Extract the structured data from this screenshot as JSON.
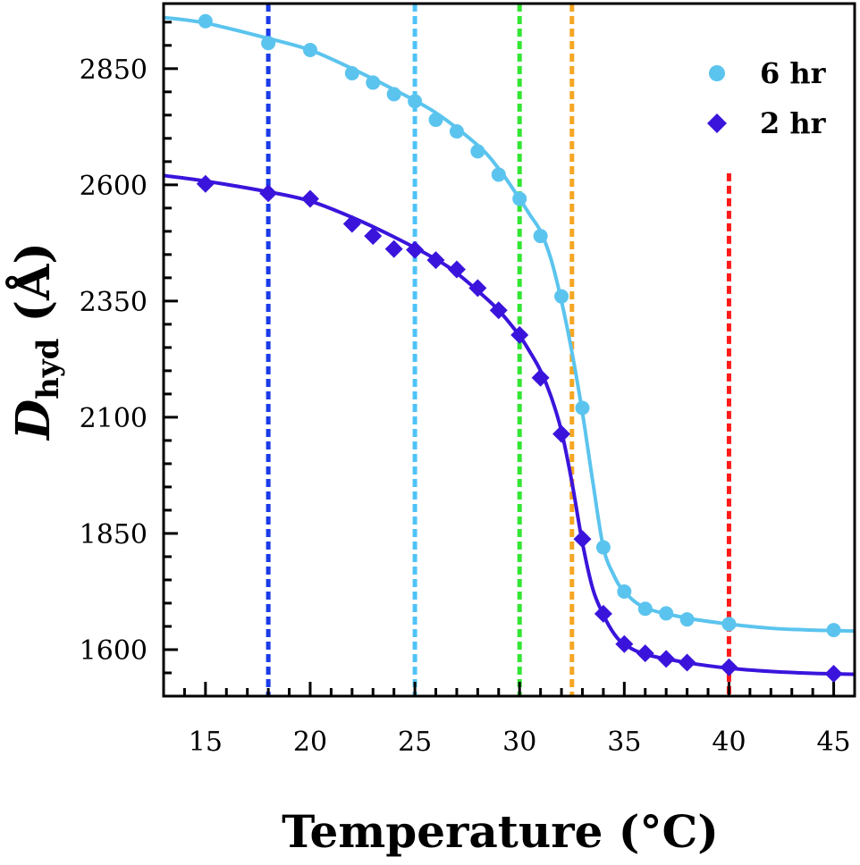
{
  "chart_data": {
    "type": "scatter",
    "xlabel": "Temperature (°C)",
    "ylabel": "D",
    "ylabel_sub": "hyd",
    "ylabel_unit": " (Å)",
    "xlim": [
      13,
      46
    ],
    "ylim": [
      1500,
      2990
    ],
    "xticks": [
      15,
      20,
      25,
      30,
      35,
      40,
      45
    ],
    "yticks": [
      1600,
      1850,
      2100,
      2350,
      2600,
      2850
    ],
    "grid": false,
    "legend_position": "top-right",
    "vlines": [
      {
        "x": 18,
        "color": "#1a3be8"
      },
      {
        "x": 25,
        "color": "#4fc3f7"
      },
      {
        "x": 30,
        "color": "#33e633"
      },
      {
        "x": 32.5,
        "color": "#f5a623"
      },
      {
        "x": 40,
        "color": "#ff1a1a"
      }
    ],
    "series": [
      {
        "name": "6 hr",
        "color": "#5bc4ee",
        "marker": "circle",
        "x": [
          15,
          18,
          20,
          22,
          23,
          24,
          25,
          26,
          27,
          28,
          29,
          30,
          31,
          32,
          33,
          34,
          35,
          36,
          37,
          38,
          40,
          45
        ],
        "y": [
          2952,
          2905,
          2890,
          2840,
          2820,
          2795,
          2780,
          2740,
          2715,
          2672,
          2622,
          2570,
          2490,
          2360,
          2120,
          1820,
          1725,
          1688,
          1678,
          1665,
          1655,
          1642
        ],
        "fit_x": [
          13,
          15,
          18,
          20,
          22,
          24,
          26,
          28,
          29,
          30,
          30.5,
          31,
          31.5,
          32,
          32.5,
          33,
          33.5,
          34,
          34.5,
          35,
          36,
          38,
          40,
          42,
          44,
          46
        ],
        "fit_y": [
          2960,
          2948,
          2915,
          2890,
          2850,
          2805,
          2755,
          2685,
          2635,
          2570,
          2535,
          2500,
          2440,
          2350,
          2240,
          2110,
          1960,
          1820,
          1760,
          1725,
          1690,
          1668,
          1655,
          1646,
          1642,
          1640
        ]
      },
      {
        "name": "2 hr",
        "color": "#3b14dc",
        "marker": "diamond",
        "x": [
          15,
          18,
          20,
          22,
          23,
          24,
          25,
          26,
          27,
          28,
          29,
          30,
          31,
          32,
          33,
          34,
          35,
          36,
          37,
          38,
          40,
          45
        ],
        "y": [
          2602,
          2582,
          2570,
          2516,
          2490,
          2462,
          2460,
          2438,
          2418,
          2378,
          2330,
          2277,
          2185,
          2064,
          1838,
          1677,
          1612,
          1592,
          1580,
          1572,
          1562,
          1548
        ],
        "fit_x": [
          13,
          15,
          18,
          20,
          22,
          24,
          26,
          27,
          28,
          29,
          30,
          30.5,
          31,
          31.5,
          32,
          32.5,
          33,
          33.5,
          34,
          34.5,
          35,
          36,
          38,
          40,
          42,
          44,
          46
        ],
        "fit_y": [
          2620,
          2608,
          2585,
          2565,
          2530,
          2488,
          2440,
          2410,
          2372,
          2330,
          2275,
          2240,
          2200,
          2145,
          2070,
          1960,
          1830,
          1730,
          1675,
          1635,
          1612,
          1590,
          1572,
          1560,
          1553,
          1549,
          1547
        ]
      }
    ]
  }
}
